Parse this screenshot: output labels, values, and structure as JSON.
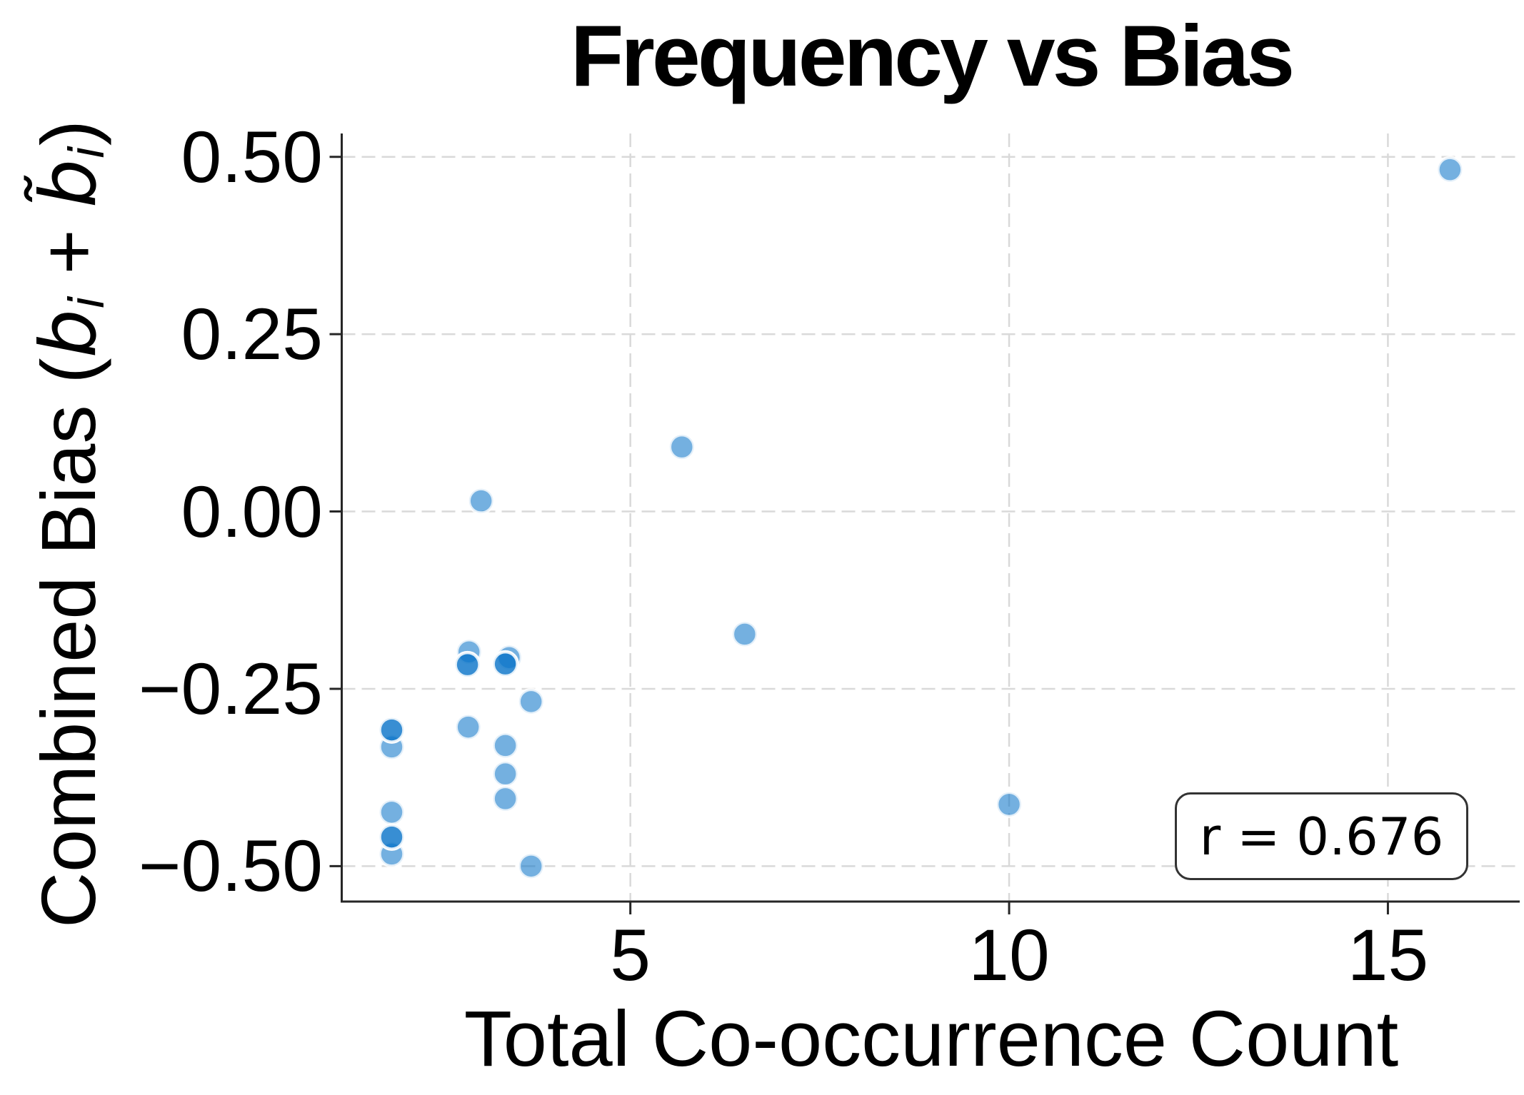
{
  "title": "Frequency vs Bias",
  "annotation": {
    "text": "r = 0.676"
  },
  "axes": {
    "xlabel": "Total Co-occurrence Count",
    "ylabel": {
      "prefix": "Combined Bias (",
      "b1": "b",
      "i1": "i",
      "plus": " + ",
      "b2": "b̃",
      "i2": "i",
      "suffix": ")"
    },
    "xticks": {
      "values": [
        5,
        10,
        15
      ],
      "labels": [
        "5",
        "10",
        "15"
      ]
    },
    "yticks": {
      "values": [
        0.5,
        0.25,
        0.0,
        -0.25,
        -0.5
      ],
      "labels": [
        "0.50",
        "0.25",
        "0.00",
        "−0.25",
        "−0.50"
      ]
    }
  },
  "chart_data": {
    "type": "scatter",
    "title": "Frequency vs Bias",
    "xlabel": "Total Co-occurrence Count",
    "ylabel": "Combined Bias (b_i + b̃_i)",
    "annotation": "r = 0.676",
    "xlim": [
      1.19,
      16.74
    ],
    "ylim": [
      -0.55,
      0.533
    ],
    "xticks": [
      5,
      10,
      15
    ],
    "yticks": [
      0.5,
      0.25,
      0.0,
      -0.25,
      -0.5
    ],
    "grid": true,
    "grid_style": "dashed",
    "grid_color": "#d9d9d9",
    "spine_color": "#262626",
    "marker_color": "#0a74c8",
    "marker_alpha": 0.57,
    "marker_edge_color": "#ffffff",
    "correlation_r": 0.676,
    "points": [
      [
        15.82,
        0.482
      ],
      [
        5.68,
        0.091
      ],
      [
        3.03,
        0.015
      ],
      [
        6.51,
        -0.173
      ],
      [
        2.87,
        -0.198
      ],
      [
        2.85,
        -0.216
      ],
      [
        2.85,
        -0.216
      ],
      [
        3.4,
        -0.206
      ],
      [
        3.35,
        -0.215
      ],
      [
        3.35,
        -0.215
      ],
      [
        3.69,
        -0.268
      ],
      [
        2.86,
        -0.304
      ],
      [
        1.85,
        -0.332
      ],
      [
        1.85,
        -0.308
      ],
      [
        1.85,
        -0.308
      ],
      [
        3.35,
        -0.33
      ],
      [
        3.35,
        -0.37
      ],
      [
        3.35,
        -0.405
      ],
      [
        1.85,
        -0.424
      ],
      [
        1.85,
        -0.483
      ],
      [
        1.85,
        -0.459
      ],
      [
        1.85,
        -0.459
      ],
      [
        3.69,
        -0.5
      ],
      [
        10.0,
        -0.413
      ]
    ]
  }
}
